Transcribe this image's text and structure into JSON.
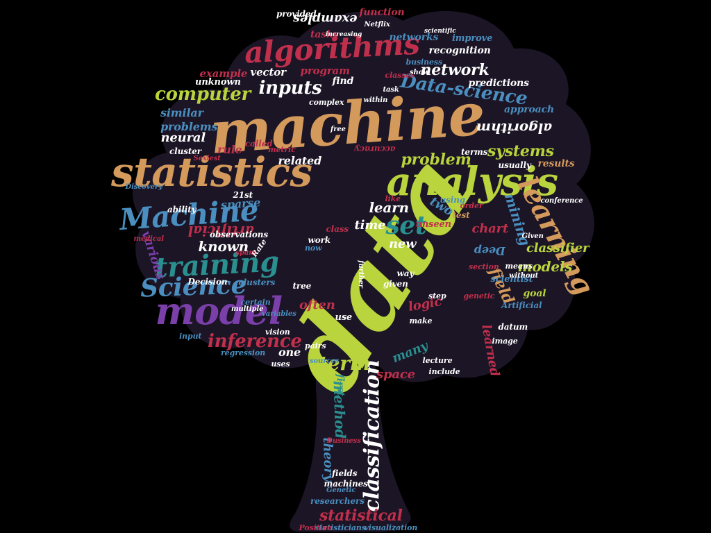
{
  "colors": {
    "background": "#000000",
    "tree_fill": "#1c1526",
    "palette": [
      "#b9d43c",
      "#d49a5c",
      "#c0304c",
      "#6f4fb3",
      "#4a8fbf",
      "#2a8f8f",
      "#ffffff",
      "#8aa036"
    ]
  },
  "shape": "tree",
  "words": [
    {
      "text": "data",
      "color": "#b9d43c"
    },
    {
      "text": "machine",
      "color": "#d49a5c"
    },
    {
      "text": "analysis",
      "color": "#b9d43c"
    },
    {
      "text": "statistics",
      "color": "#d49a5c"
    },
    {
      "text": "model",
      "color": "#7a3fa8"
    },
    {
      "text": "algorithms",
      "color": "#c0304c"
    },
    {
      "text": "learning",
      "color": "#d49a5c"
    },
    {
      "text": "Machine",
      "color": "#4a8fbf"
    },
    {
      "text": "training",
      "color": "#2a8f8f"
    },
    {
      "text": "Science",
      "color": "#4a8fbf"
    },
    {
      "text": "classification",
      "color": "#ffffff"
    },
    {
      "text": "set",
      "color": "#2a8f8f"
    },
    {
      "text": "inference",
      "color": "#c0304c"
    },
    {
      "text": "computer",
      "color": "#b9d43c"
    },
    {
      "text": "inputs",
      "color": "#ffffff"
    },
    {
      "text": "Data-science",
      "color": "#4a8fbf"
    },
    {
      "text": "network",
      "color": "#ffffff"
    },
    {
      "text": "systems",
      "color": "#b9d43c"
    },
    {
      "text": "problem",
      "color": "#b9d43c"
    },
    {
      "text": "models",
      "color": "#b9d43c"
    },
    {
      "text": "term",
      "color": "#b9d43c"
    },
    {
      "text": "statistical",
      "color": "#c0304c"
    },
    {
      "text": "method",
      "color": "#2a8f8f"
    },
    {
      "text": "theory",
      "color": "#4a8fbf"
    },
    {
      "text": "known",
      "color": "#ffffff"
    },
    {
      "text": "artificial",
      "color": "#c0304c"
    },
    {
      "text": "algorithm",
      "color": "#ffffff"
    },
    {
      "text": "examples",
      "color": "#ffffff"
    },
    {
      "text": "mining",
      "color": "#4a8fbf"
    },
    {
      "text": "field",
      "color": "#d49a5c"
    },
    {
      "text": "learned",
      "color": "#c0304c"
    },
    {
      "text": "learn",
      "color": "#ffffff"
    },
    {
      "text": "time",
      "color": "#ffffff"
    },
    {
      "text": "new",
      "color": "#ffffff"
    },
    {
      "text": "logic",
      "color": "#c0304c"
    },
    {
      "text": "often",
      "color": "#c0304c"
    },
    {
      "text": "many",
      "color": "#2a8f8f"
    },
    {
      "text": "space",
      "color": "#c0304c"
    },
    {
      "text": "classifier",
      "color": "#b9d43c"
    },
    {
      "text": "chart",
      "color": "#c0304c"
    },
    {
      "text": "two",
      "color": "#4a8fbf"
    },
    {
      "text": "neural",
      "color": "#ffffff"
    },
    {
      "text": "problems",
      "color": "#4a8fbf"
    },
    {
      "text": "similar",
      "color": "#4a8fbf"
    },
    {
      "text": "related",
      "color": "#ffffff"
    },
    {
      "text": "rule",
      "color": "#c0304c"
    },
    {
      "text": "sparse",
      "color": "#4a8fbf"
    },
    {
      "text": "various",
      "color": "#7a3fa8"
    },
    {
      "text": "example",
      "color": "#c0304c"
    },
    {
      "text": "vector",
      "color": "#ffffff"
    },
    {
      "text": "program",
      "color": "#c0304c"
    },
    {
      "text": "find",
      "color": "#ffffff"
    },
    {
      "text": "recognition",
      "color": "#ffffff"
    },
    {
      "text": "networks",
      "color": "#4a8fbf"
    },
    {
      "text": "predictions",
      "color": "#ffffff"
    },
    {
      "text": "approach",
      "color": "#4a8fbf"
    },
    {
      "text": "results",
      "color": "#d49a5c"
    },
    {
      "text": "tasks",
      "color": "#c0304c"
    },
    {
      "text": "function",
      "color": "#c0304c"
    },
    {
      "text": "provided",
      "color": "#ffffff"
    },
    {
      "text": "improve",
      "color": "#4a8fbf"
    },
    {
      "text": "Deep",
      "color": "#4a8fbf"
    },
    {
      "text": "scientist",
      "color": "#4a8fbf"
    },
    {
      "text": "usually",
      "color": "#ffffff"
    },
    {
      "text": "terms",
      "color": "#ffffff"
    },
    {
      "text": "accuracy",
      "color": "#c0304c"
    },
    {
      "text": "unknown",
      "color": "#ffffff"
    },
    {
      "text": "cluster",
      "color": "#ffffff"
    },
    {
      "text": "Decision",
      "color": "#ffffff"
    },
    {
      "text": "clusters",
      "color": "#4a8fbf"
    },
    {
      "text": "observations",
      "color": "#ffffff"
    },
    {
      "text": "ability",
      "color": "#ffffff"
    },
    {
      "text": "21st",
      "color": "#ffffff"
    },
    {
      "text": "vision",
      "color": "#ffffff"
    },
    {
      "text": "variables",
      "color": "#4a8fbf"
    },
    {
      "text": "regression",
      "color": "#4a8fbf"
    },
    {
      "text": "input",
      "color": "#4a8fbf"
    },
    {
      "text": "certain",
      "color": "#4a8fbf"
    },
    {
      "text": "multiple",
      "color": "#ffffff"
    },
    {
      "text": "called",
      "color": "#c0304c"
    },
    {
      "text": "metric",
      "color": "#c0304c"
    },
    {
      "text": "Sexiest",
      "color": "#c0304c"
    },
    {
      "text": "Discovery",
      "color": "#4a8fbf"
    },
    {
      "text": "medical",
      "color": "#c0304c"
    },
    {
      "text": "spam",
      "color": "#c0304c"
    },
    {
      "text": "tree",
      "color": "#ffffff"
    },
    {
      "text": "one",
      "color": "#ffffff"
    },
    {
      "text": "use",
      "color": "#ffffff"
    },
    {
      "text": "given",
      "color": "#ffffff"
    },
    {
      "text": "way",
      "color": "#ffffff"
    },
    {
      "text": "work",
      "color": "#ffffff"
    },
    {
      "text": "now",
      "color": "#4a8fbf"
    },
    {
      "text": "class",
      "color": "#c0304c"
    },
    {
      "text": "unseen",
      "color": "#c0304c"
    },
    {
      "text": "using",
      "color": "#4a8fbf"
    },
    {
      "text": "test",
      "color": "#d49a5c"
    },
    {
      "text": "order",
      "color": "#c0304c"
    },
    {
      "text": "like",
      "color": "#c0304c"
    },
    {
      "text": "goal",
      "color": "#b9d43c"
    },
    {
      "text": "Artificial",
      "color": "#4a8fbf"
    },
    {
      "text": "means",
      "color": "#ffffff"
    },
    {
      "text": "without",
      "color": "#ffffff"
    },
    {
      "text": "Given",
      "color": "#ffffff"
    },
    {
      "text": "section",
      "color": "#c0304c"
    },
    {
      "text": "step",
      "color": "#ffffff"
    },
    {
      "text": "genetic",
      "color": "#c0304c"
    },
    {
      "text": "datum",
      "color": "#ffffff"
    },
    {
      "text": "make",
      "color": "#ffffff"
    },
    {
      "text": "lecture",
      "color": "#ffffff"
    },
    {
      "text": "include",
      "color": "#ffffff"
    },
    {
      "text": "image",
      "color": "#ffffff"
    },
    {
      "text": "sources",
      "color": "#4a8fbf"
    },
    {
      "text": "pairs",
      "color": "#ffffff"
    },
    {
      "text": "uses",
      "color": "#ffffff"
    },
    {
      "text": "fields",
      "color": "#ffffff"
    },
    {
      "text": "machines",
      "color": "#ffffff"
    },
    {
      "text": "researchers",
      "color": "#4a8fbf"
    },
    {
      "text": "Business",
      "color": "#c0304c"
    },
    {
      "text": "Genetic",
      "color": "#4a8fbf"
    },
    {
      "text": "statisticians",
      "color": "#4a8fbf"
    },
    {
      "text": "Positive",
      "color": "#c0304c"
    },
    {
      "text": "visualization",
      "color": "#4a8fbf"
    },
    {
      "text": "first",
      "color": "#2a8f8f"
    },
    {
      "text": "conference",
      "color": "#ffffff"
    },
    {
      "text": "complex",
      "color": "#ffffff"
    },
    {
      "text": "Netflix",
      "color": "#ffffff"
    },
    {
      "text": "classes",
      "color": "#c0304c"
    },
    {
      "text": "business",
      "color": "#4a8fbf"
    },
    {
      "text": "task",
      "color": "#ffffff"
    },
    {
      "text": "within",
      "color": "#ffffff"
    },
    {
      "text": "show",
      "color": "#ffffff"
    },
    {
      "text": "free",
      "color": "#ffffff"
    },
    {
      "text": "increasing",
      "color": "#ffffff"
    },
    {
      "text": "scientific",
      "color": "#ffffff"
    },
    {
      "text": "Rate",
      "color": "#ffffff"
    },
    {
      "text": "further",
      "color": "#ffffff"
    }
  ]
}
